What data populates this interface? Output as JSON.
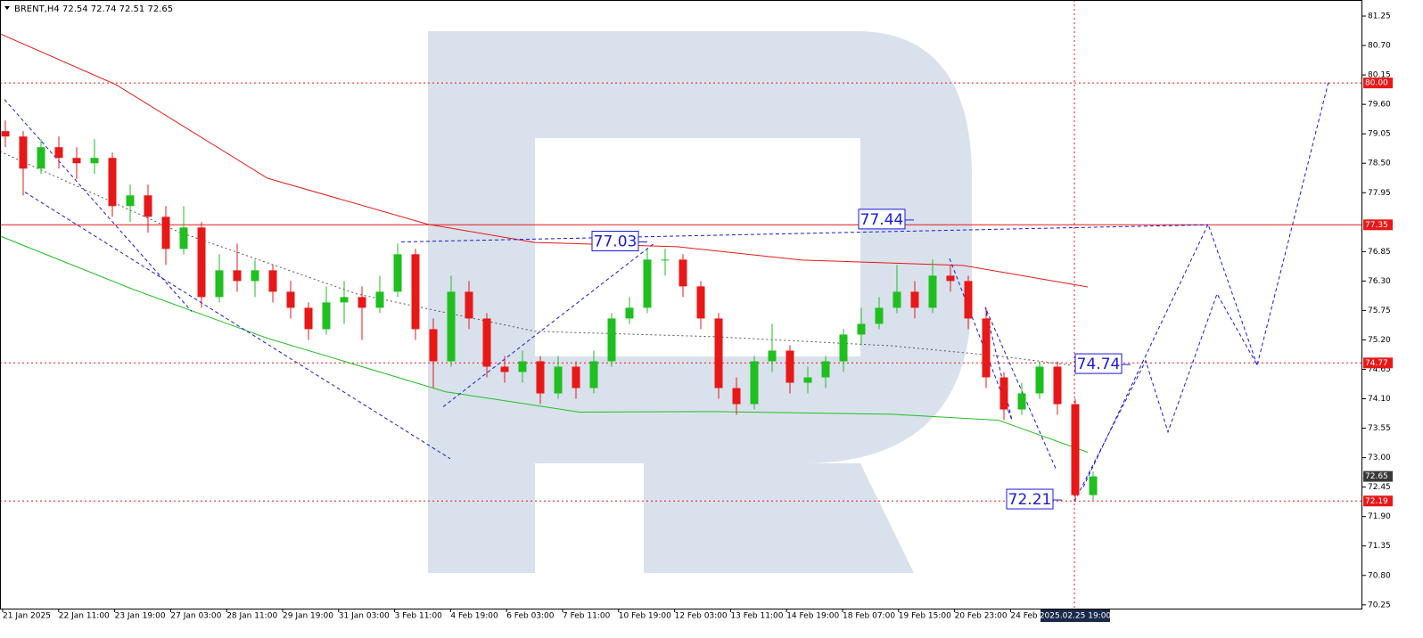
{
  "header": {
    "symbol": "BRENT,H4",
    "ohlc": [
      72.54,
      72.74,
      72.51,
      72.65
    ]
  },
  "chart_data": {
    "type": "candlestick",
    "xlim": [
      -0.3,
      76.1
    ],
    "ylim": [
      70.18,
      81.55
    ],
    "yticks": [
      81.25,
      {
        "value": 80.7,
        "label": "80.70"
      },
      80.15,
      {
        "value": 79.6,
        "label": "79.60"
      },
      79.05,
      {
        "value": 78.5,
        "label": "78.50"
      },
      77.95,
      {
        "value": 76.85,
        "label": "76.85"
      },
      {
        "value": 76.3,
        "label": "76.30"
      },
      75.75,
      {
        "value": 75.2,
        "label": "75.20"
      },
      74.65,
      {
        "value": 74.1,
        "label": "74.10"
      },
      73.55,
      {
        "value": 73,
        "label": "73.00"
      },
      72.45,
      {
        "value": 71.9,
        "label": "71.90"
      },
      71.35,
      {
        "value": 70.8,
        "label": "70.80"
      },
      70.25
    ],
    "categories": [
      "21 Jan 2025",
      "22 Jan 11:00",
      "23 Jan 19:00",
      "27 Jan 03:00",
      "28 Jan 11:00",
      "29 Jan 19:00",
      "31 Jan 03:00",
      "3 Feb 11:00",
      "4 Feb 19:00",
      "6 Feb 03:00",
      "7 Feb 11:00",
      "10 Feb 19:00",
      "12 Feb 03:00",
      "13 Feb 11:00",
      "14 Feb 19:00",
      "18 Feb 07:00",
      "19 Feb 15:00",
      "20 Feb 23:00",
      "24 Feb"
    ],
    "cursor_label": "2025.02.25 19:00",
    "up_color": "#1fbf1f",
    "down_color": "#e81818",
    "candles": [
      [
        79.1,
        79.3,
        78.8,
        79.0
      ],
      [
        79.0,
        79.1,
        77.9,
        78.4
      ],
      [
        78.4,
        78.95,
        78.3,
        78.8
      ],
      [
        78.8,
        79.0,
        78.4,
        78.6
      ],
      [
        78.6,
        78.8,
        78.2,
        78.5
      ],
      [
        78.5,
        78.95,
        78.3,
        78.6
      ],
      [
        78.6,
        78.7,
        77.5,
        77.7
      ],
      [
        77.7,
        78.1,
        77.4,
        77.9
      ],
      [
        77.9,
        78.1,
        77.2,
        77.5
      ],
      [
        77.5,
        77.7,
        76.6,
        76.9
      ],
      [
        76.9,
        77.7,
        76.8,
        77.3
      ],
      [
        77.3,
        77.4,
        75.8,
        76.0
      ],
      [
        76.0,
        76.8,
        75.9,
        76.5
      ],
      [
        76.5,
        77.0,
        76.1,
        76.3
      ],
      [
        76.3,
        76.7,
        76.0,
        76.5
      ],
      [
        76.5,
        76.6,
        75.9,
        76.1
      ],
      [
        76.1,
        76.3,
        75.6,
        75.8
      ],
      [
        75.8,
        75.9,
        75.2,
        75.4
      ],
      [
        75.4,
        76.2,
        75.3,
        75.9
      ],
      [
        75.9,
        76.3,
        75.5,
        76.0
      ],
      [
        76.0,
        76.2,
        75.2,
        75.8
      ],
      [
        75.8,
        76.4,
        75.7,
        76.1
      ],
      [
        76.1,
        77.0,
        76.0,
        76.8
      ],
      [
        76.8,
        76.9,
        75.2,
        75.4
      ],
      [
        75.4,
        75.6,
        74.3,
        74.8
      ],
      [
        74.8,
        76.4,
        74.7,
        76.1
      ],
      [
        76.1,
        76.3,
        75.4,
        75.6
      ],
      [
        75.6,
        75.7,
        74.5,
        74.7
      ],
      [
        74.7,
        74.9,
        74.4,
        74.6
      ],
      [
        74.6,
        75.0,
        74.4,
        74.8
      ],
      [
        74.8,
        74.9,
        74.0,
        74.2
      ],
      [
        74.2,
        74.9,
        74.1,
        74.7
      ],
      [
        74.7,
        74.8,
        74.1,
        74.3
      ],
      [
        74.3,
        75.0,
        74.2,
        74.8
      ],
      [
        74.8,
        75.7,
        74.7,
        75.6
      ],
      [
        75.6,
        76.0,
        75.5,
        75.8
      ],
      [
        75.8,
        76.9,
        75.7,
        76.7
      ],
      [
        76.7,
        76.9,
        76.4,
        76.7
      ],
      [
        76.7,
        76.8,
        76.0,
        76.2
      ],
      [
        76.2,
        76.3,
        75.4,
        75.6
      ],
      [
        75.6,
        75.7,
        74.1,
        74.3
      ],
      [
        74.3,
        74.5,
        73.8,
        74.0
      ],
      [
        74.0,
        74.9,
        73.9,
        74.8
      ],
      [
        74.8,
        75.5,
        74.6,
        75.0
      ],
      [
        75.0,
        75.1,
        74.2,
        74.4
      ],
      [
        74.4,
        74.7,
        74.2,
        74.5
      ],
      [
        74.5,
        74.9,
        74.3,
        74.8
      ],
      [
        74.8,
        75.4,
        74.6,
        75.3
      ],
      [
        75.3,
        75.8,
        75.1,
        75.5
      ],
      [
        75.5,
        76.0,
        75.4,
        75.8
      ],
      [
        75.8,
        76.6,
        75.7,
        76.1
      ],
      [
        76.1,
        76.3,
        75.6,
        75.8
      ],
      [
        75.8,
        76.7,
        75.7,
        76.4
      ],
      [
        76.4,
        76.6,
        76.1,
        76.3
      ],
      [
        76.3,
        76.4,
        75.4,
        75.6
      ],
      [
        75.6,
        75.8,
        74.3,
        74.5
      ],
      [
        74.5,
        74.6,
        73.7,
        73.9
      ],
      [
        73.9,
        74.4,
        73.8,
        74.2
      ],
      [
        74.2,
        74.8,
        74.1,
        74.7
      ],
      [
        74.7,
        74.8,
        73.8,
        74.0
      ],
      [
        74.0,
        74.1,
        72.2,
        72.3
      ],
      [
        72.3,
        72.74,
        72.2,
        72.65
      ]
    ],
    "lines": [
      {
        "color": "#e81818",
        "style": "solid",
        "x": [
          -0.3,
          6.2,
          14.7,
          23.7,
          29.7,
          37.7,
          44.7,
          53.7,
          60.7
        ],
        "values": [
          80.92,
          79.97,
          78.22,
          77.36,
          77.02,
          76.94,
          76.69,
          76.59,
          76.19
        ]
      },
      {
        "color": "#22c022",
        "style": "solid",
        "x": [
          -0.3,
          7.2,
          14.7,
          24.7,
          32.2,
          39.7,
          49.7,
          55.7,
          60.7
        ],
        "values": [
          77.14,
          76.14,
          75.23,
          74.23,
          73.85,
          73.86,
          73.81,
          73.7,
          73.1
        ]
      },
      {
        "color": "#555555",
        "style": "dotted",
        "x": [
          -0.3,
          9.7,
          19.7,
          29.7,
          39.7,
          49.7,
          55.7,
          59.7
        ],
        "values": [
          78.72,
          77.22,
          76.06,
          75.36,
          75.26,
          75.09,
          74.9,
          74.73
        ]
      },
      {
        "color": "#1a1adc",
        "style": "dashed",
        "x": [
          -0.05,
          10.45
        ],
        "values": [
          79.69,
          75.73
        ]
      },
      {
        "color": "#1a1adc",
        "style": "dashed",
        "x": [
          1.1,
          24.95
        ],
        "values": [
          77.96,
          72.98
        ]
      },
      {
        "color": "#1a1adc",
        "style": "dashed",
        "x": [
          24.55,
          36.45
        ],
        "values": [
          73.95,
          77.02
        ]
      },
      {
        "color": "#1a1adc",
        "style": "dashed",
        "x": [
          22.2,
          67.45
        ],
        "values": [
          77.03,
          77.35
        ]
      },
      {
        "color": "#1a1adc",
        "style": "dashed",
        "x": [
          52.95,
          56.45,
          54.95,
          58.95
        ],
        "values": [
          76.72,
          73.7,
          75.81,
          72.76
        ]
      },
      {
        "color": "#1a1adc",
        "style": "dashed",
        "x": [
          59.95,
          63.95,
          65.2,
          67.95,
          70.2,
          74.2
        ],
        "values": [
          72.18,
          74.81,
          73.48,
          76.06,
          74.73,
          80.02
        ]
      },
      {
        "color": "#1a1adc",
        "style": "dashed",
        "x": [
          60.45,
          67.45,
          70.2
        ],
        "values": [
          72.45,
          77.36,
          74.73
        ]
      }
    ],
    "levels": [
      {
        "price": {
          "value": 80,
          "label": "80.00"
        },
        "color": "#e81818",
        "style": "dotted"
      },
      {
        "price": 77.35,
        "color": "#e81818",
        "style": "solid"
      },
      {
        "price": 74.77,
        "color": "#e81818",
        "style": "dotted"
      },
      {
        "price": 72.19,
        "color": "#e81818",
        "style": "dotted"
      }
    ],
    "last_price": {
      "price": 72.65,
      "color": "#3a3a3a"
    },
    "cursor_x": 59.95,
    "annotations": [
      {
        "value": 77.03,
        "x": 34.2
      },
      {
        "value": 77.44,
        "x": 49.15
      },
      {
        "value": 74.74,
        "x": 61.3
      },
      {
        "value": 72.21,
        "x": 57.45
      }
    ]
  }
}
